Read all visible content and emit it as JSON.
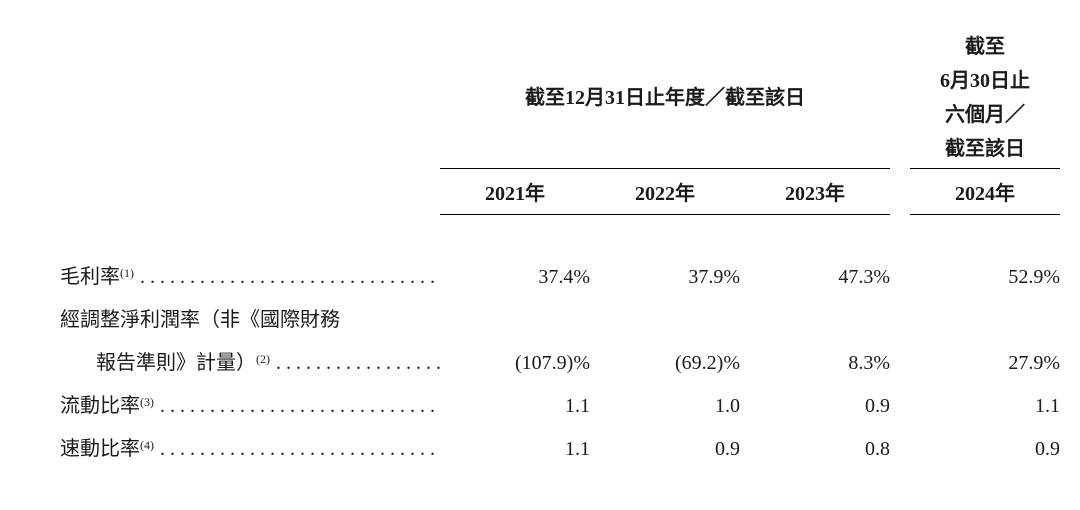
{
  "header": {
    "group1_title": "截至12月31日止年度／截至該日",
    "group2_line1": "截至",
    "group2_line2": "6月30日止",
    "group2_line3": "六個月／",
    "group2_line4": "截至該日",
    "year1": "2021年",
    "year2": "2022年",
    "year3": "2023年",
    "year4": "2024年"
  },
  "rows": [
    {
      "label": "毛利率",
      "sup": "(1)",
      "v1": "37.4%",
      "v2": "37.9%",
      "v3": "47.3%",
      "v4": "52.9%"
    },
    {
      "label_line1": "經調整淨利潤率（非《國際財務",
      "label_line2": "報告準則》計量）",
      "sup": "(2)",
      "v1": "(107.9)%",
      "v2": "(69.2)%",
      "v3": "8.3%",
      "v4": "27.9%"
    },
    {
      "label": "流動比率",
      "sup": "(3)",
      "v1": "1.1",
      "v2": "1.0",
      "v3": "0.9",
      "v4": "1.1"
    },
    {
      "label": "速動比率",
      "sup": "(4)",
      "v1": "1.1",
      "v2": "0.9",
      "v3": "0.8",
      "v4": "0.9"
    }
  ],
  "style": {
    "text_color": "#1a1a1a",
    "bg_color": "#ffffff",
    "rule_color": "#000000",
    "font_size_body": 20,
    "font_size_sup": 12
  }
}
